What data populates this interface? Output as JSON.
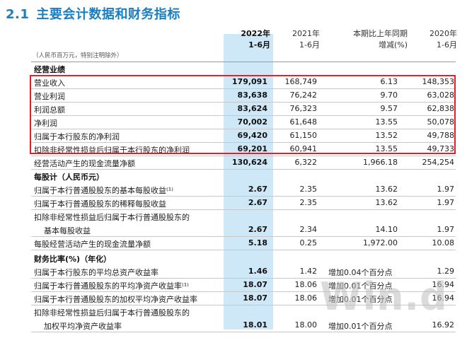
{
  "title": {
    "number": "2.1",
    "text": "主要会计数据和财务指标"
  },
  "columns": [
    {
      "line1": "2022年",
      "line2": "1-6月"
    },
    {
      "line1": "2021年",
      "line2": "1-6月"
    },
    {
      "line1": "本期比上年同期",
      "line2": "增减(%)"
    },
    {
      "line1": "2020年",
      "line2": "1-6月"
    }
  ],
  "unit_note": "（人民币百万元，特别注明除外）",
  "rows": [
    {
      "label": "经营业绩",
      "section": true
    },
    {
      "label": "营业收入",
      "v": [
        "179,091",
        "168,749",
        "6.13",
        "148,353"
      ]
    },
    {
      "label": "营业利润",
      "v": [
        "83,638",
        "76,242",
        "9.70",
        "63,028"
      ]
    },
    {
      "label": "利润总额",
      "v": [
        "83,624",
        "76,323",
        "9.57",
        "62,838"
      ]
    },
    {
      "label": "净利润",
      "v": [
        "70,002",
        "61,648",
        "13.55",
        "50,078"
      ]
    },
    {
      "label": "归属于本行股东的净利润",
      "v": [
        "69,420",
        "61,150",
        "13.52",
        "49,788"
      ]
    },
    {
      "label": "扣除非经常性损益后归属于本行股东的净利润",
      "v": [
        "69,201",
        "60,941",
        "13.55",
        "49,733"
      ]
    },
    {
      "label": "经营活动产生的现金流量净额",
      "v": [
        "130,624",
        "6,322",
        "1,966.18",
        "254,254"
      ]
    },
    {
      "label": "每股计（人民币元）",
      "section": true
    },
    {
      "label": "归属于本行普通股股东的基本每股收益⁽¹⁾",
      "v": [
        "2.67",
        "2.35",
        "13.62",
        "1.97"
      ]
    },
    {
      "label": "归属于本行普通股股东的稀释每股收益",
      "v": [
        "2.67",
        "2.35",
        "13.62",
        "1.97"
      ]
    },
    {
      "label": "扣除非经常性损益后归属于本行普通股股东的",
      "v": [
        "",
        "",
        "",
        ""
      ]
    },
    {
      "label": "基本每股收益",
      "indent": true,
      "v": [
        "2.67",
        "2.34",
        "14.10",
        "1.97"
      ]
    },
    {
      "label": "每股经营活动产生的现金流量净额",
      "v": [
        "5.18",
        "0.25",
        "1,972.00",
        "10.08"
      ]
    },
    {
      "label": "财务比率(%)（年化）",
      "section": true
    },
    {
      "label": "归属于本行股东的平均总资产收益率",
      "v": [
        "1.46",
        "1.42",
        "增加0.04个百分点",
        "1.29"
      ],
      "textchange": true
    },
    {
      "label": "归属于本行普通股股东的平均净资产收益率⁽¹⁾",
      "v": [
        "18.07",
        "18.06",
        "增加0.01个百分点",
        "16.94"
      ],
      "textchange": true
    },
    {
      "label": "归属于本行普通股股东的加权平均净资产收益率",
      "v": [
        "18.07",
        "18.06",
        "增加0.01个百分点",
        "16.94"
      ],
      "textchange": true
    },
    {
      "label": "扣除非经常性损益后归属于本行普通股股东的",
      "v": [
        "",
        "",
        "",
        ""
      ]
    },
    {
      "label": "加权平均净资产收益率",
      "indent": true,
      "v": [
        "18.01",
        "18.00",
        "增加0.01个百分点",
        "16.92"
      ],
      "textchange": true
    }
  ],
  "watermark": "Win.d",
  "colors": {
    "title": "#1a7fc1",
    "highlight_column": "#cfe8f7",
    "red_box": "#e0202a"
  }
}
